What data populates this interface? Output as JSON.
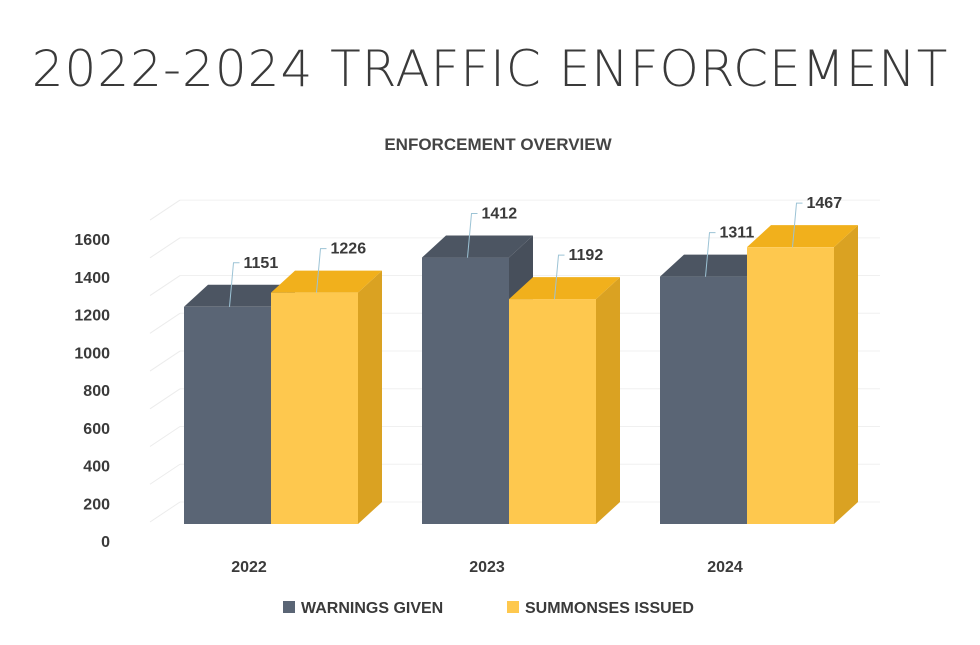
{
  "page_title": "2022-2024 TRAFFIC ENFORCEMENT",
  "chart_data": {
    "type": "bar",
    "title": "ENFORCEMENT OVERVIEW",
    "categories": [
      "2022",
      "2023",
      "2024"
    ],
    "series": [
      {
        "name": "WARNINGS GIVEN",
        "values": [
          1151,
          1412,
          1311
        ],
        "color": "#5a6575"
      },
      {
        "name": "SUMMONSES ISSUED",
        "values": [
          1226,
          1192,
          1467
        ],
        "color": "#fec84e"
      }
    ],
    "yticks": [
      0,
      200,
      400,
      600,
      800,
      1000,
      1200,
      1400,
      1600
    ],
    "ylim": [
      0,
      1600
    ],
    "xlabel": "",
    "ylabel": "",
    "grid": true,
    "legend": "bottom",
    "style": "3d-column"
  }
}
